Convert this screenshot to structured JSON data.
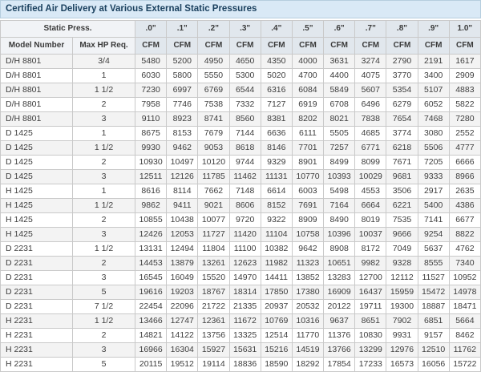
{
  "title": "Certified Air Delivery at Various External Static Pressures",
  "table": {
    "static_press_label": "Static Press.",
    "col1_header": "Model Number",
    "col2_header": "Max HP Req.",
    "unit_label": "CFM",
    "pressure_columns": [
      ".0\"",
      ".1\"",
      ".2\"",
      ".3\"",
      ".4\"",
      ".5\"",
      ".6\"",
      ".7\"",
      ".8\"",
      ".9\"",
      "1.0\""
    ],
    "rows": [
      {
        "model": "D/H 8801",
        "hp": "3/4",
        "cfm": [
          5480,
          5200,
          4950,
          4650,
          4350,
          4000,
          3631,
          3274,
          2790,
          2191,
          1617
        ]
      },
      {
        "model": "D/H 8801",
        "hp": "1",
        "cfm": [
          6030,
          5800,
          5550,
          5300,
          5020,
          4700,
          4400,
          4075,
          3770,
          3400,
          2909
        ]
      },
      {
        "model": "D/H 8801",
        "hp": "1 1/2",
        "cfm": [
          7230,
          6997,
          6769,
          6544,
          6316,
          6084,
          5849,
          5607,
          5354,
          5107,
          4883
        ]
      },
      {
        "model": "D/H 8801",
        "hp": "2",
        "cfm": [
          7958,
          7746,
          7538,
          7332,
          7127,
          6919,
          6708,
          6496,
          6279,
          6052,
          5822
        ]
      },
      {
        "model": "D/H 8801",
        "hp": "3",
        "cfm": [
          9110,
          8923,
          8741,
          8560,
          8381,
          8202,
          8021,
          7838,
          7654,
          7468,
          7280
        ]
      },
      {
        "model": "D 1425",
        "hp": "1",
        "cfm": [
          8675,
          8153,
          7679,
          7144,
          6636,
          6111,
          5505,
          4685,
          3774,
          3080,
          2552
        ]
      },
      {
        "model": "D 1425",
        "hp": "1 1/2",
        "cfm": [
          9930,
          9462,
          9053,
          8618,
          8146,
          7701,
          7257,
          6771,
          6218,
          5506,
          4777
        ]
      },
      {
        "model": "D 1425",
        "hp": "2",
        "cfm": [
          10930,
          10497,
          10120,
          9744,
          9329,
          8901,
          8499,
          8099,
          7671,
          7205,
          6666
        ]
      },
      {
        "model": "D 1425",
        "hp": "3",
        "cfm": [
          12511,
          12126,
          11785,
          11462,
          11131,
          10770,
          10393,
          10029,
          9681,
          9333,
          8966
        ]
      },
      {
        "model": "H 1425",
        "hp": "1",
        "cfm": [
          8616,
          8114,
          7662,
          7148,
          6614,
          6003,
          5498,
          4553,
          3506,
          2917,
          2635
        ]
      },
      {
        "model": "H 1425",
        "hp": "1 1/2",
        "cfm": [
          9862,
          9411,
          9021,
          8606,
          8152,
          7691,
          7164,
          6664,
          6221,
          5400,
          4386
        ]
      },
      {
        "model": "H 1425",
        "hp": "2",
        "cfm": [
          10855,
          10438,
          10077,
          9720,
          9322,
          8909,
          8490,
          8019,
          7535,
          7141,
          6677
        ]
      },
      {
        "model": "H 1425",
        "hp": "3",
        "cfm": [
          12426,
          12053,
          11727,
          11420,
          11104,
          10758,
          10396,
          10037,
          9666,
          9254,
          8822
        ]
      },
      {
        "model": "D 2231",
        "hp": "1 1/2",
        "cfm": [
          13131,
          12494,
          11804,
          11100,
          10382,
          9642,
          8908,
          8172,
          7049,
          5637,
          4762
        ]
      },
      {
        "model": "D 2231",
        "hp": "2",
        "cfm": [
          14453,
          13879,
          13261,
          12623,
          11982,
          11323,
          10651,
          9982,
          9328,
          8555,
          7340
        ]
      },
      {
        "model": "D 2231",
        "hp": "3",
        "cfm": [
          16545,
          16049,
          15520,
          14970,
          14411,
          13852,
          13283,
          12700,
          12112,
          11527,
          10952
        ]
      },
      {
        "model": "D 2231",
        "hp": "5",
        "cfm": [
          19616,
          19203,
          18767,
          18314,
          17850,
          17380,
          16909,
          16437,
          15959,
          15472,
          14978
        ]
      },
      {
        "model": "D 2231",
        "hp": "7 1/2",
        "cfm": [
          22454,
          22096,
          21722,
          21335,
          20937,
          20532,
          20122,
          19711,
          19300,
          18887,
          18471
        ]
      },
      {
        "model": "H 2231",
        "hp": "1 1/2",
        "cfm": [
          13466,
          12747,
          12361,
          11672,
          10769,
          10316,
          9637,
          8651,
          7902,
          6851,
          5664
        ]
      },
      {
        "model": "H 2231",
        "hp": "2",
        "cfm": [
          14821,
          14122,
          13756,
          13325,
          12514,
          11770,
          11376,
          10830,
          9931,
          9157,
          8462
        ]
      },
      {
        "model": "H 2231",
        "hp": "3",
        "cfm": [
          16966,
          16304,
          15927,
          15631,
          15216,
          14519,
          13766,
          13299,
          12976,
          12510,
          11762
        ]
      },
      {
        "model": "H 2231",
        "hp": "5",
        "cfm": [
          20115,
          19512,
          19114,
          18836,
          18590,
          18292,
          17854,
          17233,
          16573,
          16056,
          15722
        ]
      }
    ]
  },
  "colors": {
    "title_bg": "#d9e9f6",
    "title_border": "#b6cede",
    "title_text": "#1a405e",
    "header_bg": "#e1e7ed",
    "header_left_bg": "#f1f3f6",
    "row_alt_bg": "#f3f3f3",
    "cell_border": "#c9c9c9"
  }
}
